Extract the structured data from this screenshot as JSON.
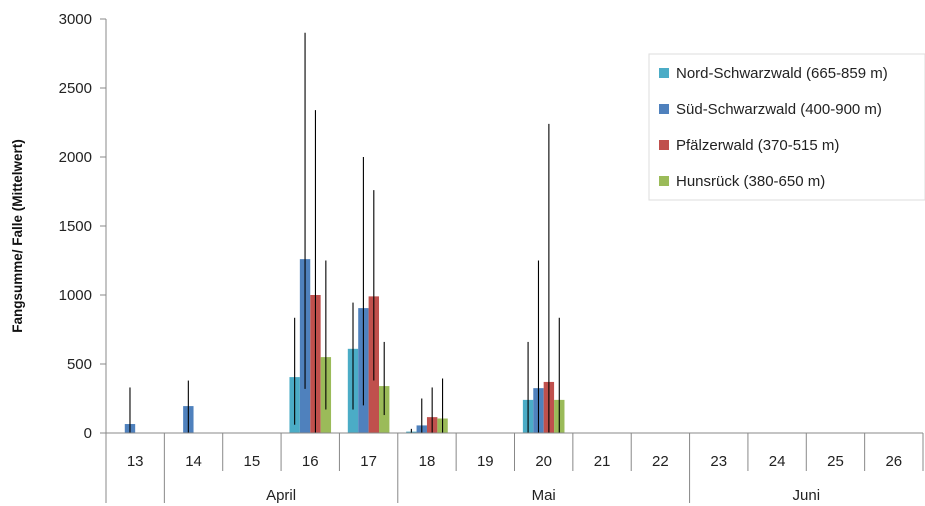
{
  "chart_data": {
    "type": "bar",
    "ylabel": "Fangsumme/ Falle (Mittelwert)",
    "xlabel": "",
    "ylim": [
      0,
      3000
    ],
    "yticks": [
      0,
      500,
      1000,
      1500,
      2000,
      2500,
      3000
    ],
    "grid": false,
    "legend_position": "top-right",
    "categories": [
      "13",
      "14",
      "15",
      "16",
      "17",
      "18",
      "19",
      "20",
      "21",
      "22",
      "23",
      "24",
      "25",
      "26"
    ],
    "month_groups": [
      {
        "label": "",
        "start": 0,
        "end": 0
      },
      {
        "label": "April",
        "start": 1,
        "end": 4
      },
      {
        "label": "Mai",
        "start": 5,
        "end": 9
      },
      {
        "label": "Juni",
        "start": 10,
        "end": 13
      }
    ],
    "series": [
      {
        "name": "Nord-Schwarzwald (665-859 m)",
        "color": "#4bacc6",
        "values": [
          0,
          0,
          0,
          405,
          610,
          10,
          0,
          240,
          0,
          0,
          0,
          0,
          0,
          0
        ],
        "error_high": [
          0,
          0,
          0,
          835,
          945,
          30,
          0,
          660,
          0,
          0,
          0,
          0,
          0,
          0
        ],
        "error_low": [
          0,
          0,
          0,
          60,
          170,
          0,
          0,
          0,
          0,
          0,
          0,
          0,
          0,
          0
        ]
      },
      {
        "name": "Süd-Schwarzwald (400-900 m)",
        "color": "#4f81bd",
        "values": [
          65,
          195,
          0,
          1260,
          905,
          55,
          0,
          325,
          0,
          0,
          0,
          0,
          0,
          0
        ],
        "error_high": [
          330,
          380,
          0,
          2900,
          2000,
          250,
          0,
          1250,
          0,
          0,
          0,
          0,
          0,
          0
        ],
        "error_low": [
          0,
          0,
          0,
          320,
          200,
          0,
          0,
          0,
          0,
          0,
          0,
          0,
          0,
          0
        ]
      },
      {
        "name": "Pfälzerwald (370-515 m)",
        "color": "#c0504d",
        "values": [
          0,
          0,
          0,
          1000,
          990,
          115,
          0,
          370,
          0,
          0,
          0,
          0,
          0,
          0
        ],
        "error_high": [
          0,
          0,
          0,
          2340,
          1760,
          330,
          0,
          2240,
          0,
          0,
          0,
          0,
          0,
          0
        ],
        "error_low": [
          0,
          0,
          0,
          0,
          380,
          0,
          0,
          0,
          0,
          0,
          0,
          0,
          0,
          0
        ]
      },
      {
        "name": "Hunsrück (380-650 m)",
        "color": "#9bbb59",
        "values": [
          0,
          0,
          0,
          550,
          340,
          105,
          0,
          240,
          0,
          0,
          0,
          0,
          0,
          0
        ],
        "error_high": [
          0,
          0,
          0,
          1250,
          660,
          395,
          0,
          835,
          0,
          0,
          0,
          0,
          0,
          0
        ],
        "error_low": [
          0,
          0,
          0,
          170,
          130,
          0,
          0,
          0,
          0,
          0,
          0,
          0,
          0,
          0
        ]
      }
    ]
  }
}
